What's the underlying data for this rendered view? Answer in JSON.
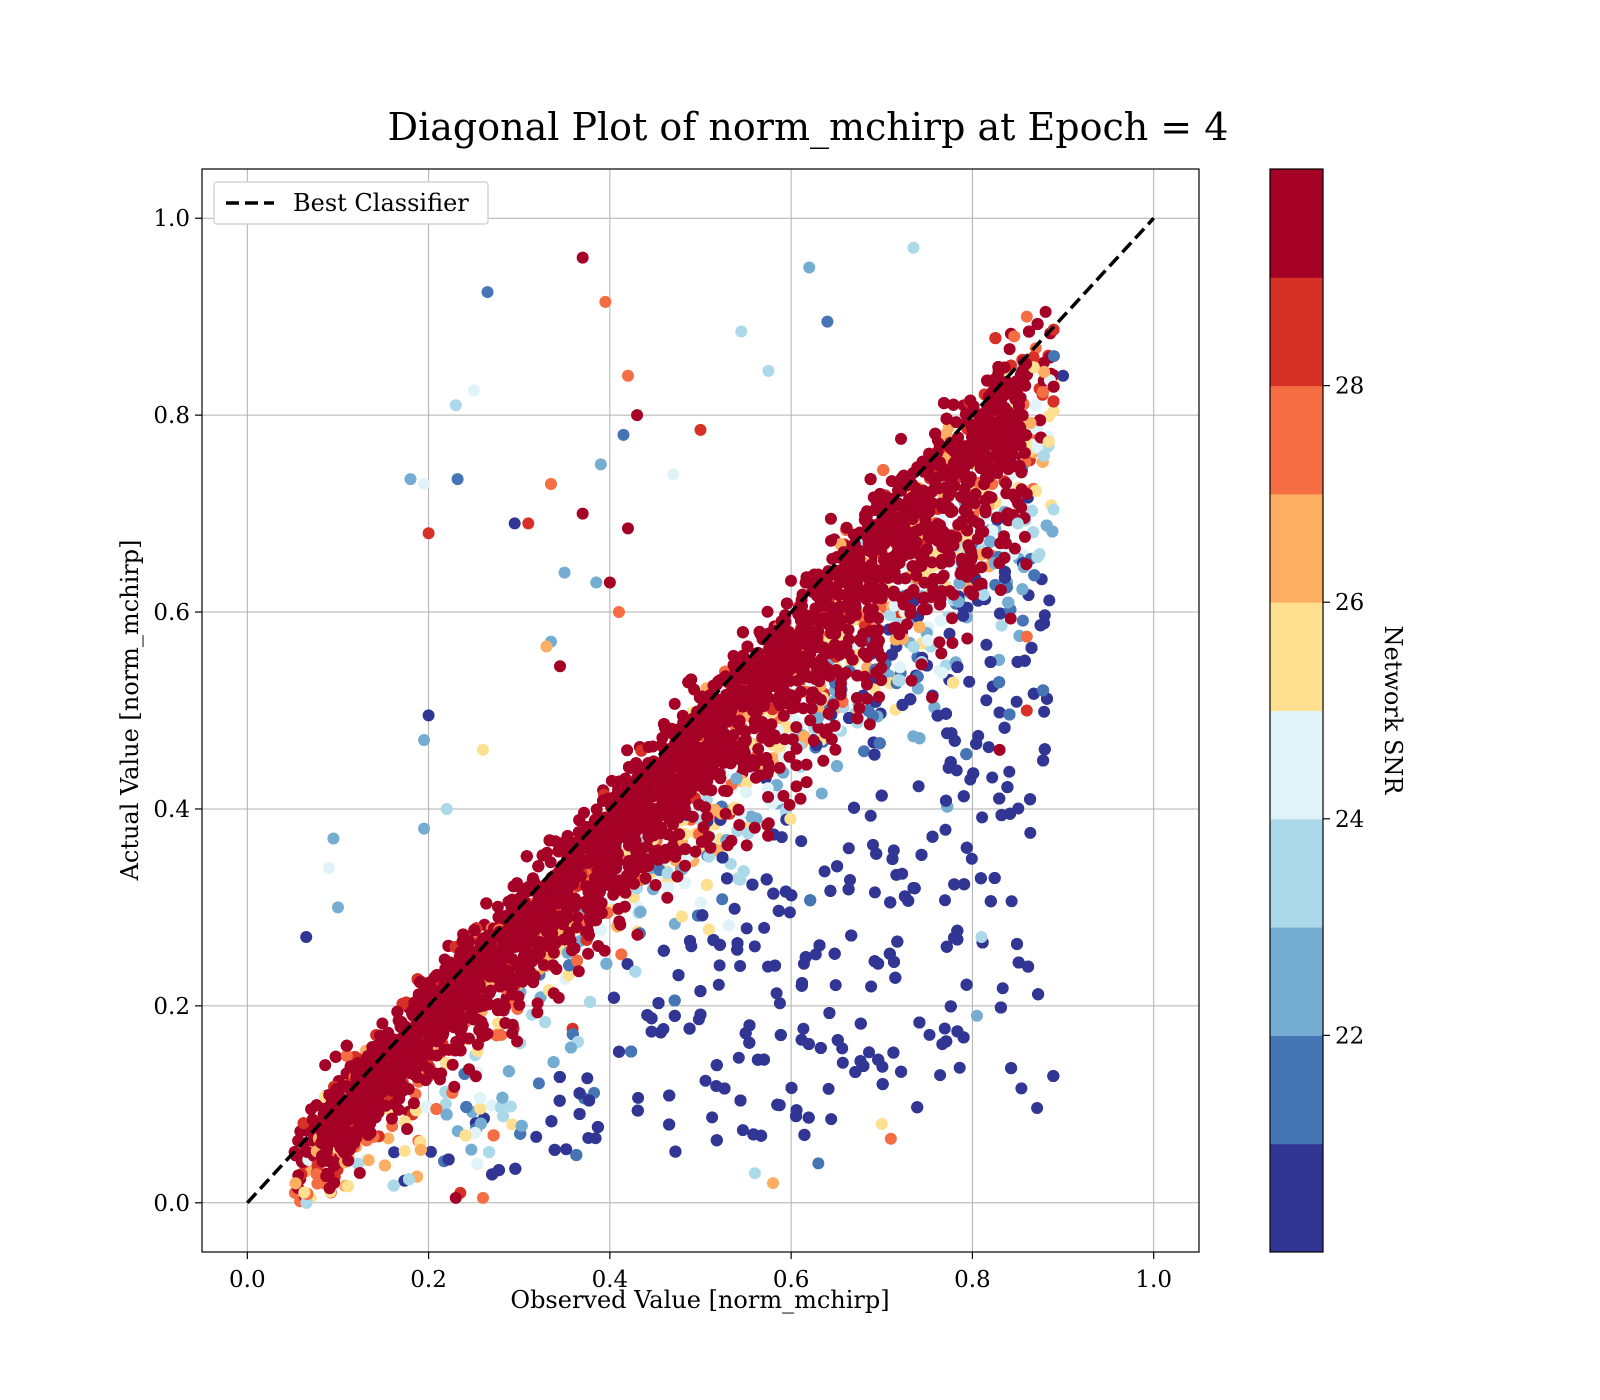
{
  "chart_data": {
    "type": "scatter",
    "title": "Diagonal Plot of norm_mchirp at Epoch = 4",
    "xlabel": "Observed Value [norm_mchirp]",
    "ylabel": "Actual Value [norm_mchirp]",
    "xlim": [
      -0.05,
      1.05
    ],
    "ylim": [
      -0.05,
      1.05
    ],
    "xticks": [
      0.0,
      0.2,
      0.4,
      0.6,
      0.8,
      1.0
    ],
    "yticks": [
      0.0,
      0.2,
      0.4,
      0.6,
      0.8,
      1.0
    ],
    "xtick_labels": [
      "0.0",
      "0.2",
      "0.4",
      "0.6",
      "0.8",
      "1.0"
    ],
    "ytick_labels": [
      "0.0",
      "0.2",
      "0.4",
      "0.6",
      "0.8",
      "1.0"
    ],
    "grid": true,
    "legend": {
      "placement": "upper-left",
      "entries": [
        "Best Classifier"
      ]
    },
    "reference_line": {
      "name": "Best Classifier",
      "style": "dashed",
      "color": "#000000",
      "x": [
        0.0,
        1.0
      ],
      "y": [
        0.0,
        1.0
      ]
    },
    "colorbar": {
      "label": "Network SNR",
      "range": [
        20,
        30
      ],
      "ticks": [
        22,
        24,
        26,
        28
      ],
      "tick_labels": [
        "22",
        "24",
        "26",
        "28"
      ],
      "colormap": "RdYlBu_r",
      "bins": 10,
      "bin_colors": [
        "#313695",
        "#4575b4",
        "#74add1",
        "#abd9e9",
        "#e0f3f8",
        "#fee090",
        "#fdae61",
        "#f46d43",
        "#d73027",
        "#a50026"
      ]
    },
    "point_density_note": "",
    "points": [
      [
        0.37,
        0.96,
        30
      ],
      [
        0.265,
        0.925,
        21
      ],
      [
        0.395,
        0.915,
        27
      ],
      [
        0.62,
        0.95,
        22.5
      ],
      [
        0.735,
        0.97,
        23
      ],
      [
        0.545,
        0.885,
        23.5
      ],
      [
        0.575,
        0.845,
        23.8
      ],
      [
        0.64,
        0.895,
        21
      ],
      [
        0.42,
        0.84,
        27.5
      ],
      [
        0.43,
        0.8,
        29
      ],
      [
        0.415,
        0.78,
        21.5
      ],
      [
        0.5,
        0.785,
        28.5
      ],
      [
        0.23,
        0.81,
        23.5
      ],
      [
        0.25,
        0.825,
        24.5
      ],
      [
        0.18,
        0.735,
        22.5
      ],
      [
        0.195,
        0.73,
        24.5
      ],
      [
        0.232,
        0.735,
        21.5
      ],
      [
        0.335,
        0.73,
        27.5
      ],
      [
        0.39,
        0.75,
        22.5
      ],
      [
        0.47,
        0.74,
        24.5
      ],
      [
        0.37,
        0.7,
        30
      ],
      [
        0.295,
        0.69,
        20.5
      ],
      [
        0.31,
        0.69,
        28
      ],
      [
        0.42,
        0.685,
        30
      ],
      [
        0.2,
        0.68,
        28.5
      ],
      [
        0.35,
        0.64,
        22.5
      ],
      [
        0.385,
        0.63,
        22
      ],
      [
        0.4,
        0.63,
        30
      ],
      [
        0.41,
        0.6,
        27
      ],
      [
        0.335,
        0.57,
        22
      ],
      [
        0.33,
        0.565,
        26
      ],
      [
        0.345,
        0.545,
        30
      ],
      [
        0.2,
        0.495,
        20.5
      ],
      [
        0.195,
        0.47,
        22
      ],
      [
        0.26,
        0.46,
        25.5
      ],
      [
        0.095,
        0.37,
        22
      ],
      [
        0.09,
        0.34,
        24
      ],
      [
        0.22,
        0.4,
        23
      ],
      [
        0.195,
        0.38,
        22
      ],
      [
        0.065,
        0.27,
        20.5
      ],
      [
        0.1,
        0.3,
        22.5
      ],
      [
        0.81,
        0.27,
        23.5
      ],
      [
        0.805,
        0.19,
        22.5
      ],
      [
        0.7,
        0.08,
        25
      ],
      [
        0.71,
        0.065,
        27
      ],
      [
        0.63,
        0.04,
        21.5
      ],
      [
        0.58,
        0.02,
        26
      ],
      [
        0.56,
        0.03,
        23.5
      ],
      [
        0.235,
        0.01,
        28.5
      ],
      [
        0.23,
        0.005,
        30
      ],
      [
        0.26,
        0.005,
        27
      ],
      [
        0.9,
        0.84,
        20.5
      ],
      [
        0.89,
        0.86,
        21
      ],
      [
        0.86,
        0.9,
        27
      ],
      [
        0.87,
        0.81,
        24
      ],
      [
        0.86,
        0.72,
        29
      ],
      [
        0.85,
        0.69,
        23.5
      ],
      [
        0.86,
        0.575,
        27.5
      ],
      [
        0.86,
        0.5,
        28
      ],
      [
        0.83,
        0.46,
        30
      ]
    ]
  }
}
